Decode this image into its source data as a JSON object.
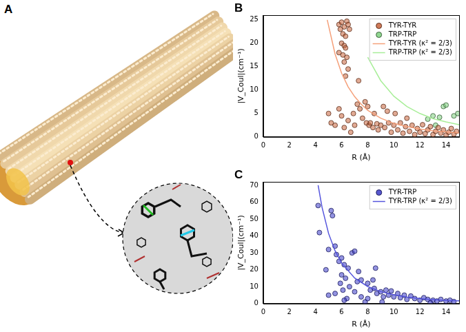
{
  "figure": {
    "panel_a": {
      "label": "A"
    }
  },
  "chart_data": [
    {
      "type": "scatter",
      "title": "B",
      "x_label": "R (Å)",
      "y_label": "|V_Coul|(cm⁻¹)",
      "xlim": [
        0,
        15
      ],
      "xticks": [
        0,
        2,
        4,
        6,
        8,
        10,
        12,
        14
      ],
      "ylim": [
        0,
        26
      ],
      "yticks": [
        0,
        5,
        10,
        15,
        20,
        25
      ],
      "grid": false,
      "legend": "upper right",
      "series": [
        {
          "name": "TYR-TYR",
          "type": "scatter",
          "marker": "circle",
          "color": "#c8643c",
          "x": [
            5.8,
            6.0,
            6.2,
            6.4,
            6.5,
            5.9,
            6.1,
            6.3,
            6.0,
            6.2,
            6.3,
            5.8,
            6.1,
            6.4,
            6.6,
            6.2,
            6.5,
            6.3,
            5.0,
            5.2,
            5.5,
            5.8,
            6.0,
            6.2,
            6.5,
            6.7,
            6.9,
            7.0,
            7.2,
            7.3,
            7.4,
            7.6,
            7.8,
            7.9,
            8.0,
            8.1,
            8.2,
            8.4,
            8.5,
            8.7,
            8.8,
            9.0,
            9.2,
            9.3,
            9.5,
            9.6,
            9.8,
            10.0,
            10.1,
            10.3,
            10.5,
            10.7,
            10.9,
            11.0,
            11.2,
            11.4,
            11.6,
            11.8,
            12.0,
            12.2,
            12.4,
            12.6,
            12.8,
            13.0,
            13.2,
            13.4,
            13.6,
            13.8,
            14.0,
            14.2,
            14.4,
            14.6,
            14.8
          ],
          "values": [
            24,
            24.5,
            23.5,
            24.7,
            24,
            23,
            22,
            21.5,
            20,
            19.5,
            19,
            18,
            17.5,
            17,
            23,
            16,
            14.5,
            13,
            5,
            3,
            2.5,
            6,
            4.5,
            2,
            3.5,
            1,
            5,
            2.5,
            7,
            12,
            6,
            4,
            7.5,
            3,
            6.5,
            2.5,
            3,
            2,
            5,
            2.8,
            1.5,
            2.5,
            6.5,
            2,
            5.5,
            3,
            1,
            2.5,
            5,
            1.5,
            3,
            0.8,
            2.2,
            4,
            1.2,
            2.5,
            0.5,
            1.8,
            1,
            2.6,
            0.7,
            1.5,
            2.2,
            0.5,
            1.2,
            2,
            0.8,
            1.5,
            0.4,
            1,
            1.8,
            0.6,
            1.2
          ]
        },
        {
          "name": "TRP-TRP",
          "type": "scatter",
          "marker": "circle",
          "color": "#7ed07e",
          "x": [
            12.6,
            13.0,
            13.2,
            13.5,
            13.8,
            14.0,
            14.6,
            14.9
          ],
          "values": [
            3.8,
            4.5,
            2.5,
            4.2,
            6.5,
            6.8,
            4.5,
            5.0
          ]
        },
        {
          "name": "TYR-TYR (κ² = 2/3)",
          "type": "line",
          "line_style": "solid",
          "color": "#f5a07a",
          "x": [
            4.9,
            5.5,
            6,
            6.5,
            7,
            7.5,
            8,
            9,
            10,
            11,
            12,
            13,
            14,
            15
          ],
          "values": [
            25,
            17.7,
            13.6,
            10.7,
            8.6,
            7.0,
            5.7,
            4.0,
            2.9,
            2.2,
            1.7,
            1.3,
            1.07,
            0.87
          ]
        },
        {
          "name": "TRP-TRP (κ² = 2/3)",
          "type": "line",
          "line_style": "solid",
          "color": "#a8ee98",
          "x": [
            8,
            9,
            10,
            11,
            12,
            13,
            14,
            15
          ],
          "values": [
            17,
            12,
            8.7,
            6.5,
            5.0,
            3.9,
            3.2,
            2.6
          ]
        }
      ]
    },
    {
      "type": "scatter",
      "title": "C",
      "x_label": "R (Å)",
      "y_label": "|V_Coul|(cm⁻¹)",
      "xlim": [
        0,
        15
      ],
      "xticks": [
        0,
        2,
        4,
        6,
        8,
        10,
        12,
        14
      ],
      "ylim": [
        0,
        72
      ],
      "yticks": [
        0,
        10,
        20,
        30,
        40,
        50,
        60,
        70
      ],
      "grid": false,
      "legend": "upper right",
      "series": [
        {
          "name": "TYR-TRP",
          "type": "scatter",
          "marker": "circle",
          "color": "#3b3bc8",
          "x": [
            4.2,
            4.3,
            5.2,
            5.3,
            5.0,
            5.5,
            4.8,
            5.6,
            5.8,
            6.0,
            6.2,
            6.0,
            6.3,
            6.5,
            6.6,
            6.8,
            7.0,
            7.2,
            7.3,
            7.5,
            7.0,
            6.4,
            5.5,
            5.0,
            6.2,
            7.8,
            8.0,
            8.2,
            8.0,
            8.5,
            8.7,
            8.6,
            9.0,
            9.2,
            9.4,
            9.6,
            9.8,
            10.0,
            10.3,
            10.5,
            10.8,
            11.0,
            11.3,
            11.6,
            12.0,
            12.3,
            12.6,
            13.0,
            13.3,
            13.6,
            14.0,
            14.3,
            14.6,
            7.5,
            8.4,
            9.1,
            5.9,
            6.1,
            12.8
          ],
          "values": [
            58,
            42,
            55,
            52,
            32,
            34,
            20,
            29,
            25,
            27,
            23,
            17,
            15,
            21,
            10,
            30,
            31,
            13,
            19,
            14,
            7,
            3,
            6,
            5,
            2,
            1,
            12,
            8,
            3,
            9,
            6,
            21,
            7,
            4,
            8,
            5,
            7.5,
            4,
            6,
            3.5,
            5,
            2.5,
            4.5,
            3,
            2,
            3.5,
            2.5,
            2,
            1.5,
            2.5,
            1.5,
            2,
            1.2,
            4,
            14,
            1,
            12,
            8,
            0.5
          ]
        },
        {
          "name": "TYR-TRP (κ² = 2/3)",
          "type": "line",
          "line_style": "solid",
          "color": "#5555dd",
          "x": [
            4.2,
            4.5,
            5,
            5.5,
            6,
            7,
            8,
            9,
            10,
            11,
            12,
            13,
            14,
            15
          ],
          "values": [
            70,
            57,
            41.5,
            31.2,
            24,
            15.1,
            10.1,
            7.1,
            5.2,
            3.9,
            3.0,
            2.4,
            1.9,
            1.6
          ]
        }
      ]
    }
  ]
}
